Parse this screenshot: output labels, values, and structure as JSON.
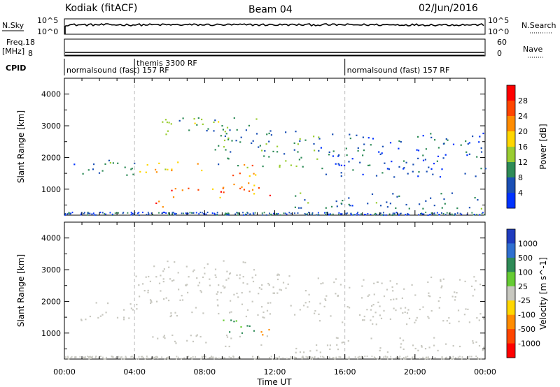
{
  "header": {
    "station": "Kodiak (fitACF)",
    "beam": "Beam 04",
    "date": "02/Jun/2016"
  },
  "top_panels": {
    "nsky_label": "N.Sky",
    "nsky_ticks": [
      "10^5",
      "10^0"
    ],
    "nsearch_label": "N.Search",
    "nsearch_ticks_right": [
      "10^5",
      "10^0"
    ],
    "freq_label": "Freq.",
    "freq_unit": "[MHz]",
    "freq_ticks": [
      "18",
      "8"
    ],
    "nave_label": "Nave",
    "nave_ticks_right": [
      "60",
      "0"
    ],
    "cpid_label": "CPID",
    "cpid_segments": [
      {
        "label": "normalsound (fast) 157 RF",
        "start": 0,
        "end": 4
      },
      {
        "label": "themis 3300 RF",
        "start": 4,
        "end": 16
      },
      {
        "label": "normalsound (fast) 157 RF",
        "start": 16,
        "end": 24
      }
    ]
  },
  "chart_data": [
    {
      "type": "heatmap",
      "name": "power",
      "xlabel": "Time UT",
      "ylabel": "Slant Range [km]",
      "xlim": [
        0,
        24
      ],
      "ylim": [
        180,
        4500
      ],
      "x_ticks": [
        "00:00",
        "04:00",
        "08:00",
        "12:00",
        "16:00",
        "20:00",
        "00:00"
      ],
      "y_ticks": [
        1000,
        2000,
        3000,
        4000
      ],
      "colorbar": {
        "label": "Power [dB]",
        "ticks": [
          "4",
          "8",
          "12",
          "16",
          "20",
          "24",
          "28"
        ],
        "colors": [
          "#0033ff",
          "#1a4fb5",
          "#2e8b57",
          "#9acd32",
          "#ffd700",
          "#ff8c00",
          "#ff4500",
          "#ff0000"
        ]
      },
      "scatter_bands": [
        {
          "t0": 0.5,
          "t1": 4.0,
          "r0": 1400,
          "r1": 2000,
          "level": 8
        },
        {
          "t0": 4.0,
          "t1": 8.0,
          "r0": 1500,
          "r1": 1900,
          "level": 20
        },
        {
          "t0": 8.0,
          "t1": 14.5,
          "r0": 1700,
          "r1": 2900,
          "level": 10
        },
        {
          "t0": 4.8,
          "t1": 6.0,
          "r0": 420,
          "r1": 760,
          "level": 26
        },
        {
          "t0": 6.0,
          "t1": 12.0,
          "r0": 700,
          "r1": 1100,
          "level": 24
        },
        {
          "t0": 9.5,
          "t1": 11.0,
          "r0": 1000,
          "r1": 1800,
          "level": 22
        },
        {
          "t0": 5.0,
          "t1": 11.0,
          "r0": 2700,
          "r1": 3300,
          "level": 12
        },
        {
          "t0": 14.5,
          "t1": 24.0,
          "r0": 1400,
          "r1": 2800,
          "level": 6
        },
        {
          "t0": 13.0,
          "t1": 24.0,
          "r0": 400,
          "r1": 900,
          "level": 8
        }
      ],
      "vertical_lines": [
        4,
        16
      ]
    },
    {
      "type": "heatmap",
      "name": "velocity",
      "xlabel": "Time UT",
      "ylabel": "Slant Range [km]",
      "xlim": [
        0,
        24
      ],
      "ylim": [
        180,
        4500
      ],
      "x_ticks": [
        "00:00",
        "04:00",
        "08:00",
        "12:00",
        "16:00",
        "20:00",
        "00:00"
      ],
      "y_ticks": [
        1000,
        2000,
        3000,
        4000
      ],
      "colorbar": {
        "label": "Velocity [m s^-1]",
        "ticks": [
          "1000",
          "500",
          "100",
          "25",
          "-25",
          "-100",
          "-500",
          "-1000"
        ],
        "colors": [
          "#1f3cbf",
          "#2f6fd0",
          "#2e8b57",
          "#66cc33",
          "#c8c8c0",
          "#ffd700",
          "#ff8c00",
          "#ff4500",
          "#ff0000"
        ]
      },
      "scatter_bands": [
        {
          "t0": 0.5,
          "t1": 4.0,
          "r0": 1400,
          "r1": 2000,
          "level": 0
        },
        {
          "t0": 4.0,
          "t1": 14.5,
          "r0": 1500,
          "r1": 2900,
          "level": 0
        },
        {
          "t0": 5.0,
          "t1": 11.0,
          "r0": 2700,
          "r1": 3300,
          "level": 0
        },
        {
          "t0": 5.0,
          "t1": 12.0,
          "r0": 600,
          "r1": 1000,
          "level": 0
        },
        {
          "t0": 9.0,
          "t1": 11.0,
          "r0": 900,
          "r1": 1500,
          "level": 150
        },
        {
          "t0": 10.8,
          "t1": 11.8,
          "r0": 900,
          "r1": 1200,
          "level": -200
        },
        {
          "t0": 14.5,
          "t1": 24.0,
          "r0": 1300,
          "r1": 2800,
          "level": 0
        },
        {
          "t0": 13.0,
          "t1": 24.0,
          "r0": 400,
          "r1": 900,
          "level": 0
        }
      ],
      "vertical_lines": [
        4,
        16
      ]
    }
  ]
}
